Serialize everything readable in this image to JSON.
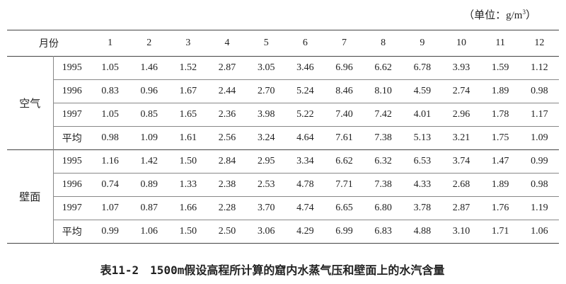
{
  "unit": {
    "prefix": "（单位：g/m",
    "sup": "3",
    "suffix": "）"
  },
  "table": {
    "header": {
      "label": "月份",
      "months": [
        "1",
        "2",
        "3",
        "4",
        "5",
        "6",
        "7",
        "8",
        "9",
        "10",
        "11",
        "12"
      ]
    },
    "groups": [
      {
        "label": "空气",
        "rows": [
          {
            "label": "1995",
            "values": [
              "1.05",
              "1.46",
              "1.52",
              "2.87",
              "3.05",
              "3.46",
              "6.96",
              "6.62",
              "6.78",
              "3.93",
              "1.59",
              "1.12"
            ]
          },
          {
            "label": "1996",
            "values": [
              "0.83",
              "0.96",
              "1.67",
              "2.44",
              "2.70",
              "5.24",
              "8.46",
              "8.10",
              "4.59",
              "2.74",
              "1.89",
              "0.98"
            ]
          },
          {
            "label": "1997",
            "values": [
              "1.05",
              "0.85",
              "1.65",
              "2.36",
              "3.98",
              "5.22",
              "7.40",
              "7.42",
              "4.01",
              "2.96",
              "1.78",
              "1.17"
            ]
          },
          {
            "label": "平均",
            "values": [
              "0.98",
              "1.09",
              "1.61",
              "2.56",
              "3.24",
              "4.64",
              "7.61",
              "7.38",
              "5.13",
              "3.21",
              "1.75",
              "1.09"
            ]
          }
        ]
      },
      {
        "label": "壁面",
        "rows": [
          {
            "label": "1995",
            "values": [
              "1.16",
              "1.42",
              "1.50",
              "2.84",
              "2.95",
              "3.34",
              "6.62",
              "6.32",
              "6.53",
              "3.74",
              "1.47",
              "0.99"
            ]
          },
          {
            "label": "1996",
            "values": [
              "0.74",
              "0.89",
              "1.33",
              "2.38",
              "2.53",
              "4.78",
              "7.71",
              "7.38",
              "4.33",
              "2.68",
              "1.89",
              "0.98"
            ]
          },
          {
            "label": "1997",
            "values": [
              "1.07",
              "0.87",
              "1.66",
              "2.28",
              "3.70",
              "4.74",
              "6.65",
              "6.80",
              "3.78",
              "2.87",
              "1.76",
              "1.19"
            ]
          },
          {
            "label": "平均",
            "values": [
              "0.99",
              "1.06",
              "1.50",
              "2.50",
              "3.06",
              "4.29",
              "6.99",
              "6.83",
              "4.88",
              "3.10",
              "1.71",
              "1.06"
            ]
          }
        ]
      }
    ]
  },
  "caption": "表11-2　1500m假设高程所计算的窟内水蒸气压和壁面上的水汽含量"
}
